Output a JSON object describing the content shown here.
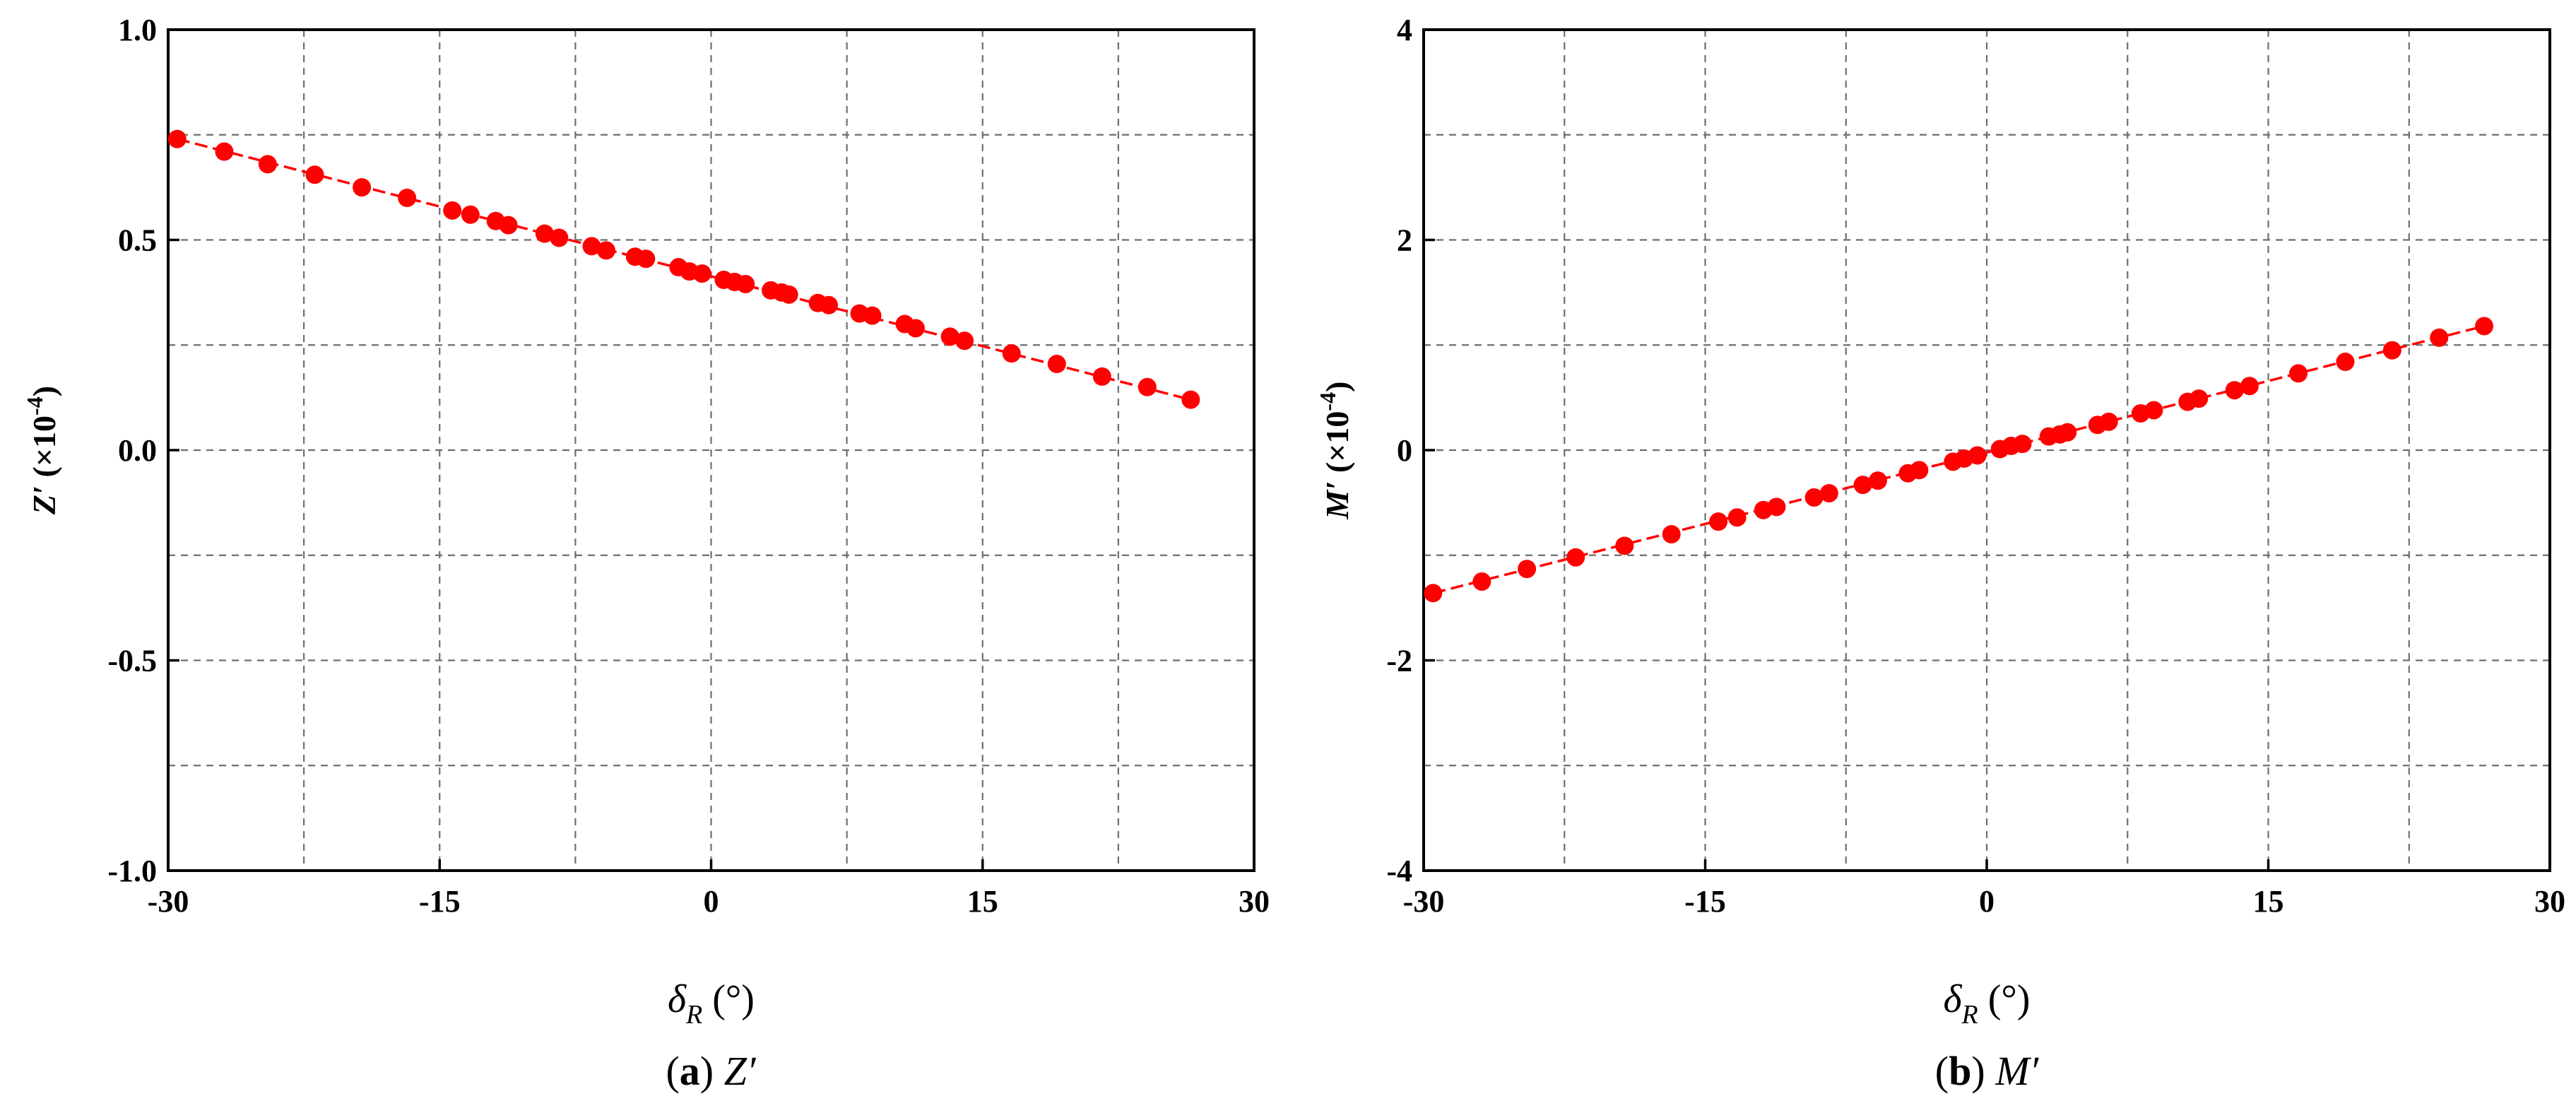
{
  "chart_data": [
    {
      "type": "scatter",
      "panel_letter": "a",
      "caption_symbol": "Z′",
      "ylabel": {
        "symbol": "Z′",
        "factor": "(×10",
        "exponent": "-4",
        "close": ")"
      },
      "xlabel": {
        "symbol": "δ",
        "subscript": "R",
        "unit": "(°)"
      },
      "xlim": [
        -30,
        30
      ],
      "ylim": [
        -1.0,
        1.0
      ],
      "xticks": [
        -30,
        -15,
        0,
        15,
        30
      ],
      "xtick_labels": [
        "-30",
        "-15",
        "0",
        "15",
        "30"
      ],
      "yticks": [
        -1.0,
        -0.5,
        0.0,
        0.5,
        1.0
      ],
      "ytick_labels": [
        "-1.0",
        "-0.5",
        "0.0",
        "0.5",
        "1.0"
      ],
      "grid": true,
      "grid_x": [
        -22.5,
        -15,
        -7.5,
        0,
        7.5,
        15,
        22.5
      ],
      "grid_y": [
        -0.75,
        -0.5,
        -0.25,
        0.0,
        0.25,
        0.5,
        0.75
      ],
      "fit_line": {
        "x": [
          -29.5,
          26.5
        ],
        "y": [
          0.74,
          0.12
        ]
      },
      "x": [
        -29.5,
        -26.9,
        -24.5,
        -21.9,
        -19.3,
        -16.8,
        -14.3,
        -13.3,
        -11.9,
        -11.2,
        -9.2,
        -8.4,
        -6.6,
        -5.8,
        -4.2,
        -3.6,
        -1.8,
        -1.2,
        -0.5,
        0.7,
        1.3,
        1.9,
        3.3,
        3.9,
        4.3,
        5.9,
        6.5,
        8.2,
        8.9,
        10.7,
        11.3,
        13.2,
        14.0,
        16.6,
        19.1,
        21.6,
        24.1,
        26.5
      ],
      "y": [
        0.74,
        0.71,
        0.68,
        0.655,
        0.625,
        0.6,
        0.57,
        0.56,
        0.545,
        0.535,
        0.515,
        0.505,
        0.485,
        0.475,
        0.46,
        0.455,
        0.435,
        0.425,
        0.42,
        0.405,
        0.4,
        0.395,
        0.38,
        0.375,
        0.37,
        0.35,
        0.345,
        0.325,
        0.32,
        0.3,
        0.29,
        0.27,
        0.26,
        0.23,
        0.205,
        0.175,
        0.15,
        0.12
      ]
    },
    {
      "type": "scatter",
      "panel_letter": "b",
      "caption_symbol": "M′",
      "ylabel": {
        "symbol": "M′",
        "factor": "(×10",
        "exponent": "-4",
        "close": ")"
      },
      "xlabel": {
        "symbol": "δ",
        "subscript": "R",
        "unit": "(°)"
      },
      "xlim": [
        -30,
        30
      ],
      "ylim": [
        -4,
        4
      ],
      "xticks": [
        -30,
        -15,
        0,
        15,
        30
      ],
      "xtick_labels": [
        "-30",
        "-15",
        "0",
        "15",
        "30"
      ],
      "yticks": [
        -4,
        -2,
        0,
        2,
        4
      ],
      "ytick_labels": [
        "-4",
        "-2",
        "0",
        "2",
        "4"
      ],
      "grid": true,
      "grid_x": [
        -22.5,
        -15,
        -7.5,
        0,
        7.5,
        15,
        22.5
      ],
      "grid_y": [
        -3,
        -2,
        -1,
        0,
        1,
        2,
        3
      ],
      "fit_line": {
        "x": [
          -29.5,
          26.5
        ],
        "y": [
          -1.36,
          1.18
        ]
      },
      "x": [
        -29.5,
        -26.9,
        -24.5,
        -21.9,
        -19.3,
        -16.8,
        -14.3,
        -13.3,
        -11.9,
        -11.2,
        -9.2,
        -8.4,
        -6.6,
        -5.8,
        -4.2,
        -3.6,
        -1.8,
        -1.2,
        -0.5,
        0.7,
        1.3,
        1.9,
        3.3,
        3.9,
        4.3,
        5.9,
        6.5,
        8.2,
        8.9,
        10.7,
        11.3,
        13.2,
        14.0,
        16.6,
        19.1,
        21.6,
        24.1,
        26.5
      ],
      "y": [
        -1.36,
        -1.25,
        -1.13,
        -1.02,
        -0.91,
        -0.8,
        -0.68,
        -0.64,
        -0.57,
        -0.54,
        -0.45,
        -0.41,
        -0.33,
        -0.29,
        -0.22,
        -0.19,
        -0.11,
        -0.08,
        -0.05,
        0.01,
        0.04,
        0.06,
        0.13,
        0.15,
        0.17,
        0.24,
        0.27,
        0.35,
        0.38,
        0.46,
        0.49,
        0.57,
        0.61,
        0.73,
        0.84,
        0.95,
        1.07,
        1.18
      ]
    }
  ]
}
